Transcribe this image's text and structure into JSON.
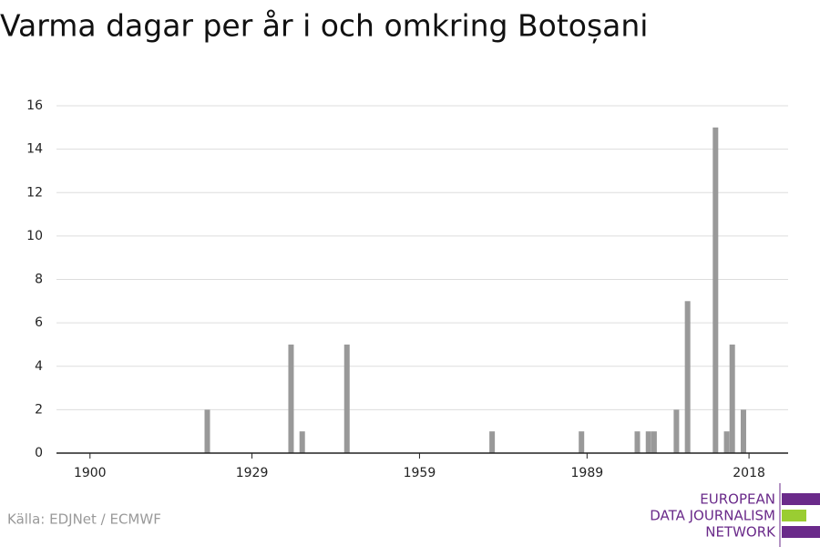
{
  "chart_data": {
    "type": "bar",
    "title": "Varma dagar per år i och omkring Botoșani",
    "x": [
      1921,
      1936,
      1938,
      1946,
      1972,
      1988,
      1998,
      2000,
      2001,
      2005,
      2007,
      2012,
      2014,
      2015,
      2017
    ],
    "values": [
      2,
      5,
      1,
      5,
      1,
      1,
      1,
      1,
      1,
      2,
      7,
      15,
      1,
      5,
      2
    ],
    "color": "#999999",
    "xlim": [
      1894,
      2025
    ],
    "xticks": [
      1900,
      1929,
      1959,
      1989,
      2018
    ],
    "ylim": [
      0,
      16
    ],
    "yticks": [
      0,
      2,
      4,
      6,
      8,
      10,
      12,
      14,
      16
    ],
    "grid": true,
    "source": "Källa: EDJNet / ECMWF"
  },
  "logo": {
    "lines": [
      "EUROPEAN",
      "DATA JOURNALISM",
      "NETWORK"
    ]
  }
}
